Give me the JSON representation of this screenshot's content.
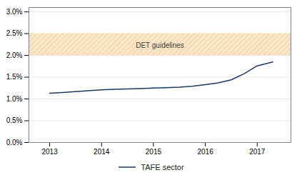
{
  "chart_data": {
    "type": "line",
    "x": [
      2013,
      2013.25,
      2013.5,
      2013.75,
      2014,
      2014.25,
      2014.5,
      2014.75,
      2015,
      2015.25,
      2015.5,
      2015.75,
      2016,
      2016.25,
      2016.5,
      2016.75,
      2017,
      2017.3
    ],
    "series": [
      {
        "name": "TAFE sector",
        "color": "#1F3864",
        "values": [
          0.0113,
          0.0115,
          0.0117,
          0.0119,
          0.0121,
          0.0122,
          0.0123,
          0.0124,
          0.0125,
          0.0126,
          0.0127,
          0.0129,
          0.0133,
          0.0137,
          0.0144,
          0.0158,
          0.0176,
          0.0185
        ]
      }
    ],
    "bands": [
      {
        "y1": 0.02,
        "y2": 0.025,
        "label": "DET guidelines",
        "color": "#FAE5C8",
        "hatch_color": "#F0C080"
      }
    ],
    "xlim": [
      2012.6,
      2017.65
    ],
    "xticks": [
      2013,
      2014,
      2015,
      2016,
      2017
    ],
    "ylim": [
      0.0,
      0.031
    ],
    "yticks": [
      {
        "value": 0.0,
        "label": "0.0%"
      },
      {
        "value": 0.005,
        "label": "0.5%"
      },
      {
        "value": 0.01,
        "label": "1.0%"
      },
      {
        "value": 0.015,
        "label": "1.5%"
      },
      {
        "value": 0.02,
        "label": "2.0%"
      },
      {
        "value": 0.025,
        "label": "2.5%"
      },
      {
        "value": 0.03,
        "label": "3.0%"
      }
    ],
    "grid": true,
    "legend": "bottom"
  }
}
